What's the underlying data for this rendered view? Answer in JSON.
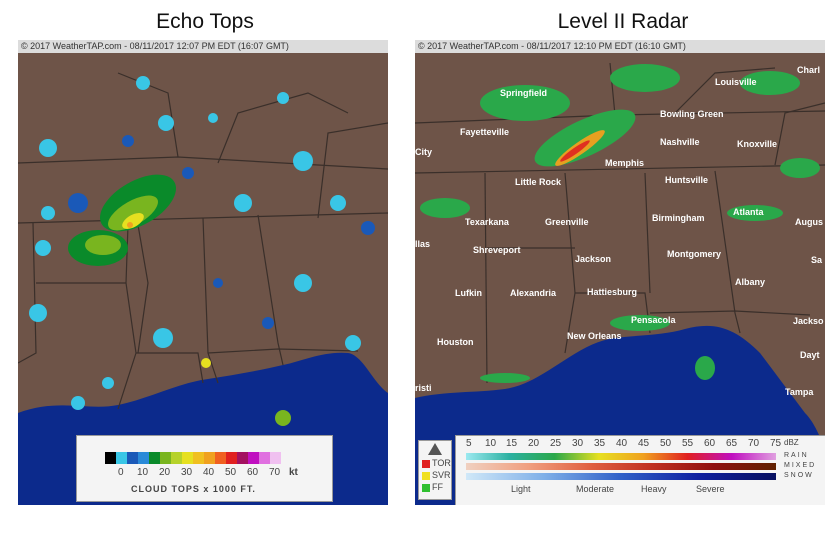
{
  "titles": {
    "left": "Echo Tops",
    "right": "Level II Radar"
  },
  "left_panel": {
    "header": "© 2017 WeatherTAP.com - 08/11/2017 12:07 PM EDT (16:07 GMT)",
    "legend": {
      "scale_labels": [
        "0",
        "10",
        "20",
        "30",
        "40",
        "50",
        "60",
        "70"
      ],
      "unit": "kt",
      "caption": "CLOUD TOPS x 1000 FT.",
      "colors": [
        "#000000",
        "#39c6e6",
        "#1a59b8",
        "#0a8a2a",
        "#79b51f",
        "#e6e020",
        "#f0a11f",
        "#e02020",
        "#a31060",
        "#c00fc0",
        "#e070e0",
        "#f0c0f0"
      ]
    }
  },
  "right_panel": {
    "header": "© 2017 WeatherTAP.com - 08/11/2017 12:10 PM EDT (16:10 GMT)",
    "legend": {
      "dbz_labels": [
        "5",
        "10",
        "15",
        "20",
        "25",
        "30",
        "35",
        "40",
        "45",
        "50",
        "55",
        "60",
        "65",
        "70",
        "75"
      ],
      "dbz_unit": "dBZ",
      "rows": [
        "RAIN",
        "MIXED",
        "SNOW"
      ],
      "intensity": [
        "Light",
        "Moderate",
        "Heavy",
        "Severe"
      ],
      "warnings": [
        {
          "label": "TOR",
          "color": "#e02020"
        },
        {
          "label": "SVR",
          "color": "#f0e020"
        },
        {
          "label": "FF",
          "color": "#30c030"
        }
      ],
      "warning_icon": "warning-triangle-icon"
    },
    "cities": [
      "Springfield",
      "Louisville",
      "Charl",
      "Bowling Green",
      "Fayetteville",
      "Nashville",
      "Knoxville",
      "City",
      "Memphis",
      "Little Rock",
      "Huntsville",
      "Texarkana",
      "Greenville",
      "Birmingham",
      "Atlanta",
      "Augus",
      "llas",
      "Shreveport",
      "Jackson",
      "Montgomery",
      "Albany",
      "Sa",
      "Hattiesburg",
      "Lufkin",
      "Alexandria",
      "Pensacola",
      "Jackso",
      "Houston",
      "New Orleans",
      "Dayt",
      "Tampa",
      "risti"
    ]
  },
  "colors": {
    "land": "#6e5448",
    "gulf": "#0c2a8c",
    "borders": "#3a2f2a"
  }
}
